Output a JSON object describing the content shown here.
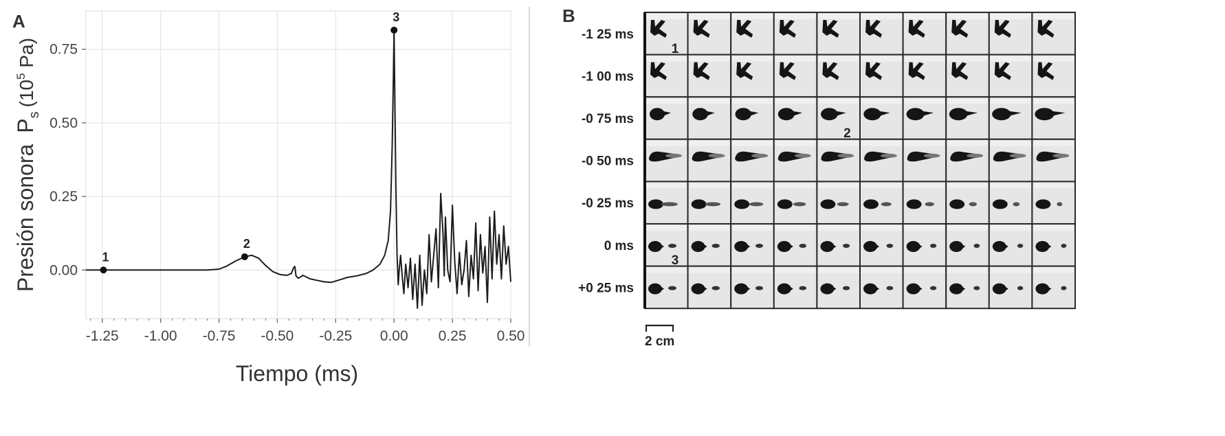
{
  "panel_a": {
    "letter": "A",
    "ylabel_main": "Presión sonora",
    "ylabel_sym": "P",
    "ylabel_sub": "s",
    "ylabel_unit_open": "(10",
    "ylabel_unit_exp": "5",
    "ylabel_unit_close": " Pa)",
    "xlabel": "Tiempo (ms)"
  },
  "chart_data": {
    "type": "line",
    "xlabel": "Tiempo (ms)",
    "ylabel": "Presión sonora Ps (10^5 Pa)",
    "xlim": [
      -1.32,
      0.5
    ],
    "ylim": [
      -0.165,
      0.88
    ],
    "x_ticks": [
      -1.25,
      -1.0,
      -0.75,
      -0.5,
      -0.25,
      0.0,
      0.25,
      0.5
    ],
    "x_tick_labels": [
      "-1.25",
      "-1.00",
      "-0.75",
      "-0.50",
      "-0.25",
      "0.00",
      "0.25",
      "0.50"
    ],
    "y_ticks": [
      0.0,
      0.25,
      0.5,
      0.75
    ],
    "y_tick_labels": [
      "0.00",
      "0.25",
      "0.50",
      "0.75"
    ],
    "grid": true,
    "series": [
      {
        "x": [
          -1.32,
          -1.25,
          -1.0,
          -0.8,
          -0.75,
          -0.72,
          -0.68,
          -0.64,
          -0.61,
          -0.58,
          -0.55,
          -0.52,
          -0.49,
          -0.46,
          -0.44,
          -0.43,
          -0.425,
          -0.42,
          -0.41,
          -0.39,
          -0.36,
          -0.33,
          -0.3,
          -0.27,
          -0.24,
          -0.2,
          -0.16,
          -0.12,
          -0.09,
          -0.06,
          -0.04,
          -0.025,
          -0.015,
          -0.008,
          -0.003,
          0.0,
          0.003,
          0.008,
          0.013,
          0.018,
          0.022,
          0.028,
          0.035,
          0.042,
          0.05,
          0.06,
          0.07,
          0.08,
          0.09,
          0.1,
          0.11,
          0.12,
          0.13,
          0.14,
          0.15,
          0.16,
          0.17,
          0.18,
          0.19,
          0.2,
          0.21,
          0.215,
          0.22,
          0.23,
          0.24,
          0.25,
          0.26,
          0.27,
          0.28,
          0.29,
          0.3,
          0.31,
          0.32,
          0.33,
          0.34,
          0.35,
          0.36,
          0.37,
          0.38,
          0.39,
          0.4,
          0.41,
          0.42,
          0.43,
          0.44,
          0.45,
          0.46,
          0.47,
          0.48,
          0.49,
          0.5
        ],
        "y": [
          0.0,
          0.0,
          0.0,
          0.0,
          0.003,
          0.012,
          0.03,
          0.045,
          0.05,
          0.04,
          0.015,
          -0.005,
          -0.015,
          -0.018,
          -0.012,
          0.008,
          0.012,
          -0.02,
          -0.028,
          -0.018,
          -0.03,
          -0.035,
          -0.04,
          -0.042,
          -0.035,
          -0.025,
          -0.02,
          -0.012,
          0.0,
          0.02,
          0.05,
          0.1,
          0.2,
          0.42,
          0.65,
          0.82,
          0.62,
          0.28,
          0.05,
          -0.05,
          0.0,
          0.05,
          -0.02,
          -0.08,
          0.02,
          -0.06,
          0.04,
          -0.1,
          0.02,
          -0.13,
          0.05,
          -0.12,
          0.0,
          -0.08,
          0.12,
          -0.04,
          0.05,
          0.14,
          -0.06,
          0.26,
          0.12,
          -0.02,
          0.18,
          0.0,
          -0.04,
          0.22,
          0.03,
          -0.08,
          0.06,
          -0.05,
          0.0,
          0.1,
          -0.09,
          0.05,
          -0.03,
          0.16,
          -0.07,
          0.12,
          -0.01,
          0.08,
          -0.11,
          0.18,
          -0.03,
          0.2,
          0.02,
          0.12,
          -0.03,
          0.15,
          0.02,
          0.08,
          -0.04
        ]
      }
    ],
    "points": [
      {
        "label": "1",
        "x": -1.245,
        "y": 0.0
      },
      {
        "label": "2",
        "x": -0.64,
        "y": 0.045
      },
      {
        "label": "3",
        "x": 0.0,
        "y": 0.815
      }
    ]
  },
  "panel_b": {
    "letter": "B",
    "rows": [
      {
        "label": "-1 25 ms",
        "shape": "k"
      },
      {
        "label": "-1 00 ms",
        "shape": "k"
      },
      {
        "label": "-0 75 ms",
        "shape": "blob"
      },
      {
        "label": "-0 50 ms",
        "shape": "jet"
      },
      {
        "label": "-0 25 ms",
        "shape": "jet_thin"
      },
      {
        "label": "0 ms",
        "shape": "split"
      },
      {
        "label": "+0 25 ms",
        "shape": "split"
      }
    ],
    "cols": 10,
    "frame_numbers": [
      {
        "label": "1",
        "row": 0,
        "col": 0
      },
      {
        "label": "2",
        "row": 2,
        "col": 4
      },
      {
        "label": "3",
        "row": 5,
        "col": 0
      }
    ],
    "scale_label": "2 cm"
  }
}
